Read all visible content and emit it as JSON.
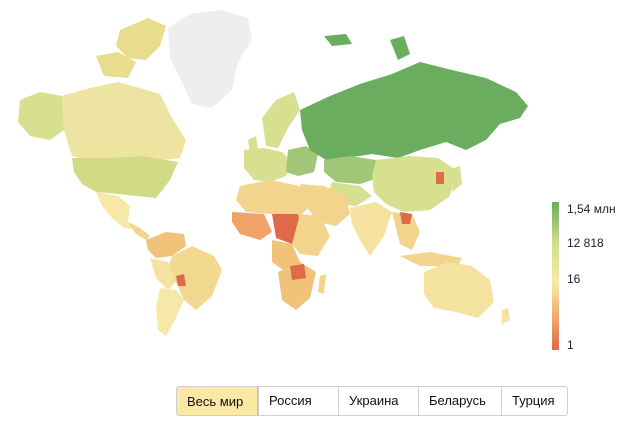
{
  "colors": {
    "high": "#6aad5e",
    "mid_high": "#d7e08f",
    "mid": "#f6e9a8",
    "low": "#f0a267",
    "lowest": "#de6a4a",
    "no_data": "#eeeeee"
  },
  "legend": {
    "labels": [
      "1,54 млн",
      "12 818",
      "16",
      "1"
    ]
  },
  "tabs": [
    {
      "label": "Весь мир",
      "active": true
    },
    {
      "label": "Россия",
      "active": false
    },
    {
      "label": "Украина",
      "active": false
    },
    {
      "label": "Беларусь",
      "active": false
    },
    {
      "label": "Турция",
      "active": false
    }
  ]
}
